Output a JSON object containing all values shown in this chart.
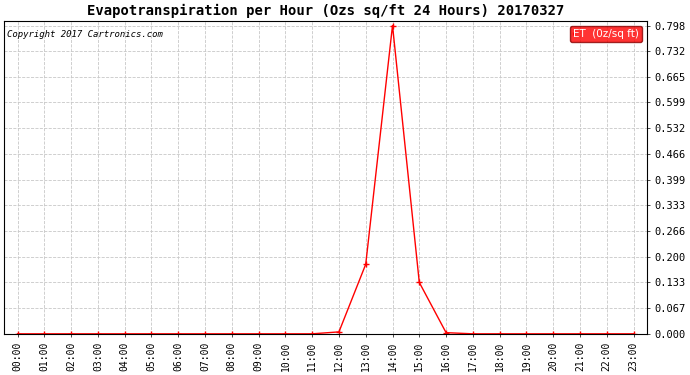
{
  "title": "Evapotranspiration per Hour (Ozs sq/ft 24 Hours) 20170327",
  "copyright": "Copyright 2017 Cartronics.com",
  "legend_label": "ET  (0z/sq ft)",
  "line_color": "#ff0000",
  "background_color": "#ffffff",
  "grid_color": "#c8c8c8",
  "y_ticks": [
    0.0,
    0.067,
    0.133,
    0.2,
    0.266,
    0.333,
    0.399,
    0.466,
    0.532,
    0.599,
    0.665,
    0.732,
    0.798
  ],
  "x_labels": [
    "00:00",
    "01:00",
    "02:00",
    "03:00",
    "04:00",
    "05:00",
    "06:00",
    "07:00",
    "08:00",
    "09:00",
    "10:00",
    "11:00",
    "12:00",
    "13:00",
    "14:00",
    "15:00",
    "16:00",
    "17:00",
    "18:00",
    "19:00",
    "20:00",
    "21:00",
    "22:00",
    "23:00"
  ],
  "hours": [
    0,
    1,
    2,
    3,
    4,
    5,
    6,
    7,
    8,
    9,
    10,
    11,
    12,
    13,
    14,
    15,
    16,
    17,
    18,
    19,
    20,
    21,
    22,
    23
  ],
  "values": [
    0,
    0,
    0,
    0,
    0,
    0,
    0,
    0,
    0,
    0,
    0,
    0,
    0.005,
    0.18,
    0.798,
    0.133,
    0.003,
    0,
    0,
    0,
    0,
    0,
    0,
    0
  ],
  "ylim_max": 0.798,
  "marker": "+"
}
